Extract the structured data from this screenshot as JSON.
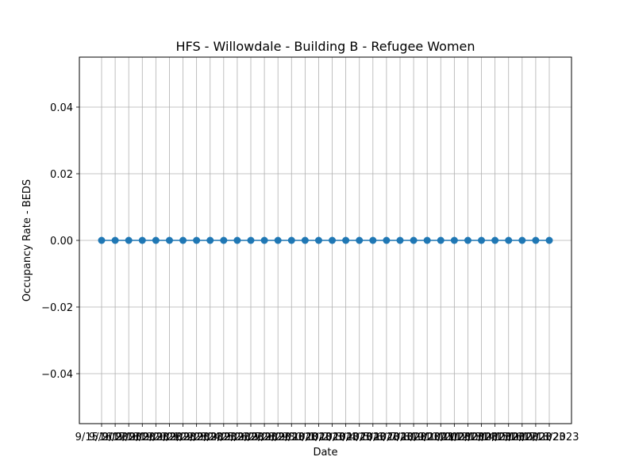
{
  "chart_data": {
    "type": "line",
    "title": "HFS - Willowdale - Building B - Refugee Women",
    "xlabel": "Date",
    "ylabel": "Occupancy Rate - BEDS",
    "grid": true,
    "ylim": [
      -0.055,
      0.055
    ],
    "yticks": [
      "−0.04",
      "−0.02",
      "0.00",
      "0.02",
      "0.04"
    ],
    "ytick_values": [
      -0.04,
      -0.02,
      0.0,
      0.02,
      0.04
    ],
    "x": [
      "9/15/2023",
      "9/16/2023",
      "9/17/2023",
      "9/18/2023",
      "9/19/2023",
      "9/20/2023",
      "9/21/2023",
      "9/22/2023",
      "9/23/2023",
      "9/24/2023",
      "9/25/2023",
      "9/26/2023",
      "9/27/2023",
      "9/28/2023",
      "9/29/2023",
      "9/30/2023",
      "10/1/2023",
      "10/2/2023",
      "10/3/2023",
      "10/4/2023",
      "10/5/2023",
      "10/6/2023",
      "10/7/2023",
      "10/8/2023",
      "10/9/2023",
      "10/10/2023",
      "10/11/2023",
      "10/12/2023",
      "10/13/2023",
      "10/14/2023",
      "10/15/2023",
      "10/16/2023",
      "10/17/2023",
      "10/18/2023"
    ],
    "series": [
      {
        "values": [
          0,
          0,
          0,
          0,
          0,
          0,
          0,
          0,
          0,
          0,
          0,
          0,
          0,
          0,
          0,
          0,
          0,
          0,
          0,
          0,
          0,
          0,
          0,
          0,
          0,
          0,
          0,
          0,
          0,
          0,
          0,
          0,
          0,
          0
        ],
        "color": "#1f77b4"
      }
    ]
  }
}
